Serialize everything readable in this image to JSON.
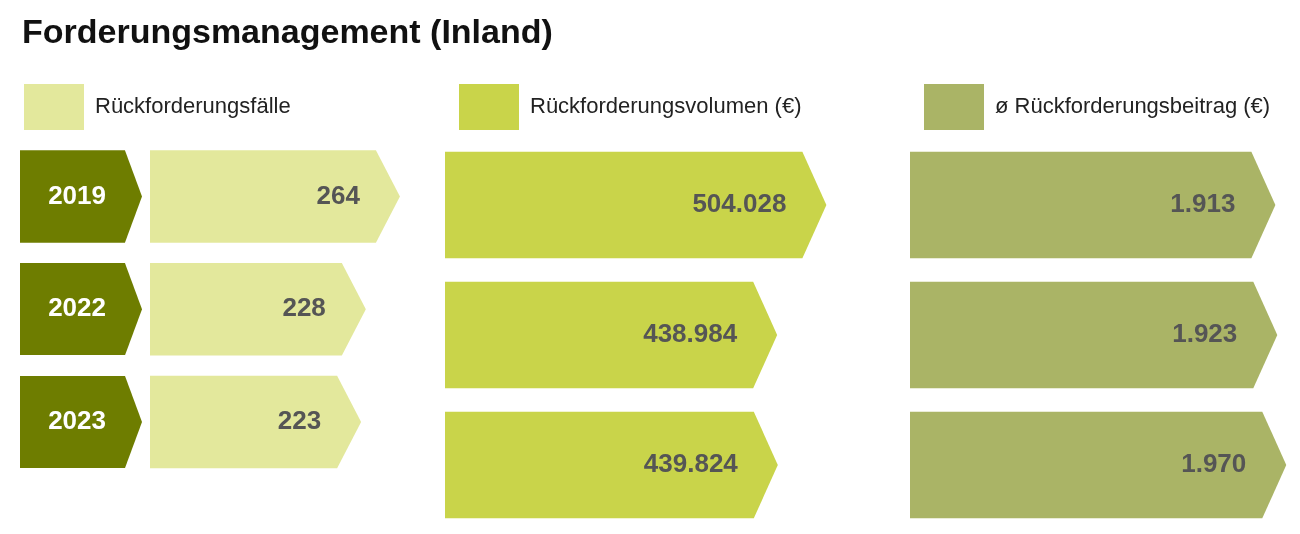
{
  "chart_data": [
    {
      "type": "bar",
      "orientation": "horizontal",
      "title": "Forderungsmanagement (Inland)",
      "categories": [
        "2019",
        "2022",
        "2023"
      ],
      "legend": "top left",
      "grid": false,
      "tick_labels": "y",
      "series": [
        {
          "name": "Rückforderungsfälle",
          "color": "#e3e89c",
          "values": [
            264,
            228,
            223
          ],
          "value_labels": [
            "264",
            "228",
            "223"
          ]
        }
      ]
    },
    {
      "type": "bar",
      "orientation": "horizontal",
      "categories": [
        null,
        null,
        null
      ],
      "legend": "top left",
      "grid": false,
      "tick_labels": false,
      "series": [
        {
          "name": "Rückforderungsvolumen (€)",
          "color": "#c9d44a",
          "values": [
            504028,
            438984,
            439824
          ],
          "value_labels": [
            "504.028",
            "438.984",
            "439.824"
          ]
        }
      ]
    },
    {
      "type": "bar",
      "orientation": "horizontal",
      "categories": [
        null,
        null,
        null
      ],
      "legend": "top left",
      "grid": false,
      "tick_labels": false,
      "series": [
        {
          "name": "ø Rückforderungsbeitrag (€)",
          "color": "#aab466",
          "values": [
            1913,
            1923,
            1970
          ],
          "value_labels": [
            "1.913",
            "1.923",
            "1.970"
          ]
        }
      ]
    }
  ]
}
